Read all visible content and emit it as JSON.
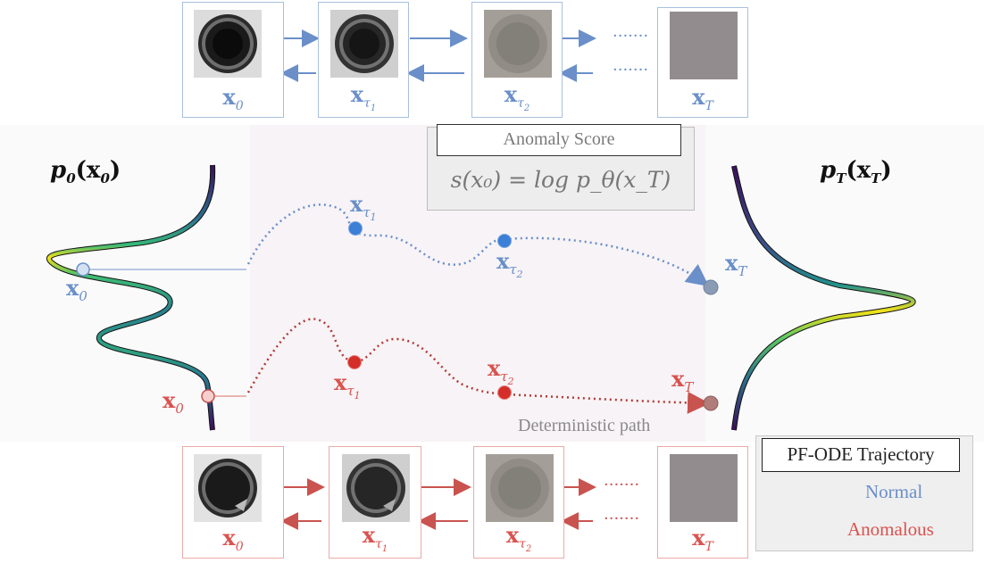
{
  "top_row": {
    "labels": [
      {
        "base": "x",
        "sub": "0",
        "subsub": ""
      },
      {
        "base": "x",
        "sub": "τ",
        "subsub": "1"
      },
      {
        "base": "x",
        "sub": "τ",
        "subsub": "2"
      },
      {
        "base": "x",
        "sub": "T",
        "subsub": ""
      }
    ],
    "dots": "·······"
  },
  "bottom_row": {
    "labels": [
      {
        "base": "x",
        "sub": "0",
        "subsub": ""
      },
      {
        "base": "x",
        "sub": "τ",
        "subsub": "1"
      },
      {
        "base": "x",
        "sub": "τ",
        "subsub": "2"
      },
      {
        "base": "x",
        "sub": "T",
        "subsub": ""
      }
    ],
    "dots": "·······"
  },
  "densities": {
    "left": {
      "p": "p",
      "sub": "0",
      "arg": "(x",
      "argsub": "0",
      "close": ")"
    },
    "right": {
      "p": "p",
      "sub": "T",
      "arg": "(x",
      "argsub": "T",
      "close": ")"
    }
  },
  "anomaly_score": {
    "title": "Anomaly Score",
    "formula": "s(x₀) = log p_θ(x_T)"
  },
  "trajectory_labels": {
    "normal": {
      "x0": "x",
      "x0_sub": "0",
      "tau1": "x",
      "tau1_sub": "τ",
      "tau1_subsub": "1",
      "tau2": "x",
      "tau2_sub": "τ",
      "tau2_subsub": "2",
      "xT": "x",
      "xT_sub": "T"
    },
    "anomalous": {
      "x0": "x",
      "x0_sub": "0",
      "tau1": "x",
      "tau1_sub": "τ",
      "tau1_subsub": "1",
      "tau2": "x",
      "tau2_sub": "τ",
      "tau2_subsub": "2",
      "xT": "x",
      "xT_sub": "T"
    }
  },
  "deterministic_path": "Deterministic path",
  "legend": {
    "title": "PF-ODE Trajectory",
    "normal": "Normal",
    "anomalous": "Anomalous"
  },
  "colors": {
    "normal": "#6a8fc9",
    "anomalous": "#d9534f",
    "normal_frame": "#a9c0e0",
    "anomalous_frame": "#ecaaa6"
  }
}
